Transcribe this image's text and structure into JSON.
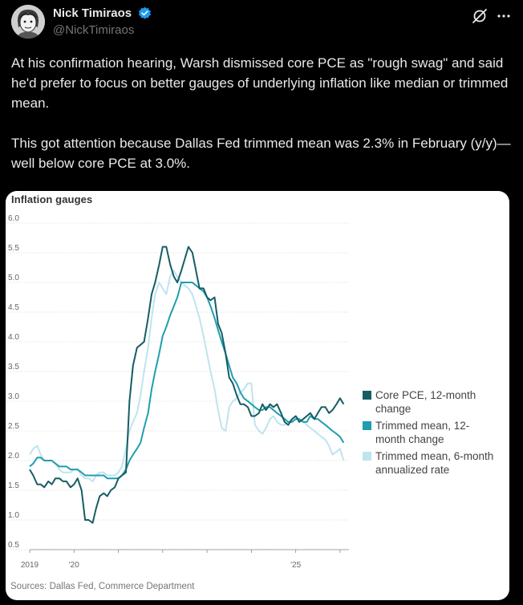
{
  "author": {
    "display_name": "Nick Timiraos",
    "handle": "@NickTimiraos",
    "verified_color": "#1d9bf0"
  },
  "tweet": {
    "paragraphs": [
      "At his confirmation hearing, Warsh dismissed core PCE as \"rough swag\" and said he'd prefer to focus on better gauges of underlying inflation like median or trimmed mean.",
      "This got attention because Dallas Fed trimmed mean was 2.3% in February (y/y)—well below core PCE at 3.0%."
    ]
  },
  "chart_data": {
    "type": "line",
    "title": "Inflation gauges",
    "source": "Sources: Dallas Fed, Commerce Department",
    "y_ticks": [
      "0.5",
      "1.0",
      "1.5",
      "2.0",
      "2.5",
      "3.0",
      "3.5",
      "4.0",
      "4.5",
      "5.0",
      "5.5",
      "6.0"
    ],
    "x_ticks": [
      {
        "label": "2019",
        "year": 2019
      },
      {
        "label": "'20",
        "year": 2020
      },
      {
        "label": "'25",
        "year": 2025
      }
    ],
    "xlim": [
      2019,
      2026.2
    ],
    "ylim": [
      0.5,
      6.0
    ],
    "legend_position": "right",
    "series": [
      {
        "name": "Core PCE, 12-month change",
        "legend_lines": [
          "Core PCE, 12-month",
          "change"
        ],
        "color": "#165d64",
        "x": [
          2019.0,
          2019.08,
          2019.17,
          2019.25,
          2019.33,
          2019.42,
          2019.5,
          2019.58,
          2019.67,
          2019.75,
          2019.83,
          2019.92,
          2020.0,
          2020.08,
          2020.17,
          2020.25,
          2020.33,
          2020.42,
          2020.5,
          2020.58,
          2020.67,
          2020.75,
          2020.83,
          2020.92,
          2021.0,
          2021.08,
          2021.17,
          2021.25,
          2021.33,
          2021.42,
          2021.5,
          2021.58,
          2021.67,
          2021.75,
          2021.83,
          2021.92,
          2022.0,
          2022.08,
          2022.17,
          2022.25,
          2022.33,
          2022.42,
          2022.5,
          2022.58,
          2022.67,
          2022.75,
          2022.83,
          2022.92,
          2023.0,
          2023.08,
          2023.17,
          2023.25,
          2023.33,
          2023.42,
          2023.5,
          2023.58,
          2023.67,
          2023.75,
          2023.83,
          2023.92,
          2024.0,
          2024.08,
          2024.17,
          2024.25,
          2024.33,
          2024.42,
          2024.5,
          2024.58,
          2024.67,
          2024.75,
          2024.83,
          2024.92,
          2025.0,
          2025.08,
          2025.17,
          2025.25,
          2025.33,
          2025.42,
          2025.5,
          2025.58,
          2025.67,
          2025.75,
          2025.83,
          2025.92,
          2026.0,
          2026.08
        ],
        "values": [
          1.85,
          1.75,
          1.6,
          1.6,
          1.55,
          1.65,
          1.6,
          1.7,
          1.7,
          1.65,
          1.65,
          1.55,
          1.6,
          1.7,
          1.5,
          1.0,
          1.0,
          0.95,
          1.2,
          1.4,
          1.45,
          1.4,
          1.5,
          1.55,
          1.7,
          1.75,
          1.8,
          3.0,
          3.6,
          3.9,
          3.95,
          4.0,
          4.4,
          4.8,
          5.0,
          5.3,
          5.6,
          5.6,
          5.3,
          5.1,
          5.0,
          5.2,
          5.4,
          5.6,
          5.5,
          5.2,
          4.9,
          4.9,
          4.75,
          4.7,
          4.75,
          4.3,
          4.15,
          3.8,
          3.4,
          3.3,
          3.1,
          2.95,
          2.95,
          2.9,
          2.75,
          2.75,
          2.8,
          2.95,
          2.85,
          2.95,
          2.9,
          2.95,
          2.8,
          2.65,
          2.6,
          2.7,
          2.75,
          2.65,
          2.7,
          2.75,
          2.8,
          2.7,
          2.8,
          2.9,
          2.9,
          2.8,
          2.85,
          2.95,
          3.05,
          2.95
        ]
      },
      {
        "name": "Trimmed mean, 12-month change",
        "legend_lines": [
          "Trimmed mean, 12-",
          "month change"
        ],
        "color": "#1f9eb0",
        "x": [
          2019.0,
          2019.08,
          2019.17,
          2019.25,
          2019.33,
          2019.42,
          2019.5,
          2019.58,
          2019.67,
          2019.75,
          2019.83,
          2019.92,
          2020.0,
          2020.08,
          2020.17,
          2020.25,
          2020.33,
          2020.42,
          2020.5,
          2020.58,
          2020.67,
          2020.75,
          2020.83,
          2020.92,
          2021.0,
          2021.08,
          2021.17,
          2021.25,
          2021.33,
          2021.42,
          2021.5,
          2021.58,
          2021.67,
          2021.75,
          2021.83,
          2021.92,
          2022.0,
          2022.08,
          2022.17,
          2022.25,
          2022.33,
          2022.42,
          2022.5,
          2022.58,
          2022.67,
          2022.75,
          2022.83,
          2022.92,
          2023.0,
          2023.08,
          2023.17,
          2023.25,
          2023.33,
          2023.42,
          2023.5,
          2023.58,
          2023.67,
          2023.75,
          2023.83,
          2023.92,
          2024.0,
          2024.08,
          2024.17,
          2024.25,
          2024.33,
          2024.42,
          2024.5,
          2024.58,
          2024.67,
          2024.75,
          2024.83,
          2024.92,
          2025.0,
          2025.08,
          2025.17,
          2025.25,
          2025.33,
          2025.42,
          2025.5,
          2025.58,
          2025.67,
          2025.75,
          2025.83,
          2025.92,
          2026.0,
          2026.08
        ],
        "values": [
          1.9,
          1.95,
          2.05,
          2.05,
          2.0,
          2.0,
          2.0,
          1.95,
          1.9,
          1.9,
          1.9,
          1.85,
          1.85,
          1.85,
          1.8,
          1.75,
          1.75,
          1.75,
          1.75,
          1.75,
          1.75,
          1.7,
          1.7,
          1.7,
          1.7,
          1.75,
          1.85,
          2.0,
          2.1,
          2.2,
          2.3,
          2.55,
          2.8,
          3.2,
          3.5,
          3.8,
          4.1,
          4.25,
          4.45,
          4.6,
          4.75,
          5.0,
          5.0,
          5.0,
          5.0,
          4.95,
          4.9,
          4.85,
          4.75,
          4.6,
          4.4,
          4.2,
          4.0,
          3.8,
          3.6,
          3.4,
          3.3,
          3.15,
          3.05,
          3.0,
          2.95,
          2.9,
          2.85,
          2.85,
          2.9,
          2.9,
          2.85,
          2.8,
          2.75,
          2.7,
          2.65,
          2.65,
          2.7,
          2.7,
          2.65,
          2.65,
          2.75,
          2.7,
          2.7,
          2.65,
          2.6,
          2.55,
          2.5,
          2.45,
          2.4,
          2.3
        ]
      },
      {
        "name": "Trimmed mean, 6-month annualized rate",
        "legend_lines": [
          "Trimmed mean, 6-month",
          "annualized rate"
        ],
        "color": "#bfe4ee",
        "x": [
          2019.0,
          2019.08,
          2019.17,
          2019.25,
          2019.33,
          2019.42,
          2019.5,
          2019.58,
          2019.67,
          2019.75,
          2019.83,
          2019.92,
          2020.0,
          2020.08,
          2020.17,
          2020.25,
          2020.33,
          2020.42,
          2020.5,
          2020.58,
          2020.67,
          2020.75,
          2020.83,
          2020.92,
          2021.0,
          2021.08,
          2021.17,
          2021.25,
          2021.33,
          2021.42,
          2021.5,
          2021.58,
          2021.67,
          2021.75,
          2021.83,
          2021.92,
          2022.0,
          2022.08,
          2022.17,
          2022.25,
          2022.33,
          2022.42,
          2022.5,
          2022.58,
          2022.67,
          2022.75,
          2022.83,
          2022.92,
          2023.0,
          2023.08,
          2023.17,
          2023.25,
          2023.33,
          2023.42,
          2023.5,
          2023.58,
          2023.67,
          2023.75,
          2023.83,
          2023.92,
          2024.0,
          2024.08,
          2024.17,
          2024.25,
          2024.33,
          2024.42,
          2024.5,
          2024.58,
          2024.67,
          2024.75,
          2024.83,
          2024.92,
          2025.0,
          2025.08,
          2025.17,
          2025.25,
          2025.33,
          2025.42,
          2025.5,
          2025.58,
          2025.67,
          2025.75,
          2025.83,
          2025.92,
          2026.0,
          2026.08
        ],
        "values": [
          2.1,
          2.2,
          2.25,
          2.1,
          2.0,
          2.0,
          2.0,
          1.95,
          1.85,
          1.8,
          1.8,
          1.8,
          1.85,
          1.85,
          1.75,
          1.7,
          1.7,
          1.65,
          1.75,
          1.8,
          1.8,
          1.75,
          1.75,
          1.75,
          1.8,
          1.9,
          2.2,
          2.5,
          2.65,
          2.8,
          3.1,
          3.5,
          3.9,
          4.4,
          4.8,
          5.0,
          4.9,
          4.8,
          5.1,
          5.2,
          5.1,
          5.0,
          4.95,
          4.9,
          4.8,
          4.6,
          4.4,
          4.1,
          3.8,
          3.5,
          3.2,
          2.85,
          2.55,
          2.5,
          2.9,
          3.0,
          3.05,
          3.15,
          3.2,
          3.3,
          3.3,
          2.6,
          2.5,
          2.45,
          2.55,
          2.7,
          2.75,
          2.65,
          2.6,
          2.6,
          2.65,
          2.7,
          2.75,
          2.7,
          2.65,
          2.6,
          2.55,
          2.5,
          2.45,
          2.4,
          2.35,
          2.25,
          2.1,
          2.15,
          2.2,
          2.0
        ]
      }
    ]
  }
}
